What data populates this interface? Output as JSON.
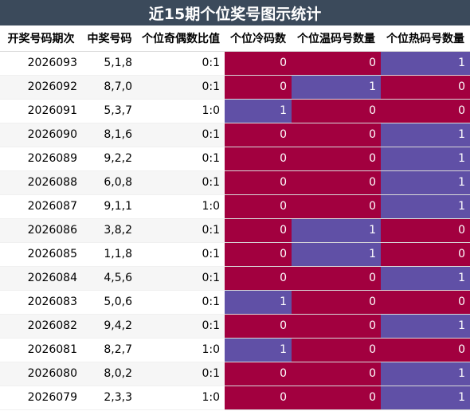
{
  "title": "近15期个位奖号图示统计",
  "headers": [
    "开奖号码期次",
    "中奖号码",
    "个位奇偶数比值",
    "个位冷码数",
    "个位温码号数量",
    "个位热码号数量"
  ],
  "colors": {
    "red": "#a2003f",
    "blue": "#6050a6",
    "title_bg": "#3b4a5b"
  },
  "rows": [
    {
      "issue": "2026093",
      "numbers": "5,1,8",
      "ratio": "0:1",
      "cold": "0",
      "warm": "0",
      "hot": "1"
    },
    {
      "issue": "2026092",
      "numbers": "8,7,0",
      "ratio": "0:1",
      "cold": "0",
      "warm": "1",
      "hot": "0"
    },
    {
      "issue": "2026091",
      "numbers": "5,3,7",
      "ratio": "1:0",
      "cold": "1",
      "warm": "0",
      "hot": "0"
    },
    {
      "issue": "2026090",
      "numbers": "8,1,6",
      "ratio": "0:1",
      "cold": "0",
      "warm": "0",
      "hot": "1"
    },
    {
      "issue": "2026089",
      "numbers": "9,2,2",
      "ratio": "0:1",
      "cold": "0",
      "warm": "0",
      "hot": "1"
    },
    {
      "issue": "2026088",
      "numbers": "6,0,8",
      "ratio": "0:1",
      "cold": "0",
      "warm": "0",
      "hot": "1"
    },
    {
      "issue": "2026087",
      "numbers": "9,1,1",
      "ratio": "1:0",
      "cold": "0",
      "warm": "0",
      "hot": "1"
    },
    {
      "issue": "2026086",
      "numbers": "3,8,2",
      "ratio": "0:1",
      "cold": "0",
      "warm": "1",
      "hot": "0"
    },
    {
      "issue": "2026085",
      "numbers": "1,1,8",
      "ratio": "0:1",
      "cold": "0",
      "warm": "1",
      "hot": "0"
    },
    {
      "issue": "2026084",
      "numbers": "4,5,6",
      "ratio": "0:1",
      "cold": "0",
      "warm": "0",
      "hot": "1"
    },
    {
      "issue": "2026083",
      "numbers": "5,0,6",
      "ratio": "0:1",
      "cold": "1",
      "warm": "0",
      "hot": "0"
    },
    {
      "issue": "2026082",
      "numbers": "9,4,2",
      "ratio": "0:1",
      "cold": "0",
      "warm": "0",
      "hot": "1"
    },
    {
      "issue": "2026081",
      "numbers": "8,2,7",
      "ratio": "1:0",
      "cold": "1",
      "warm": "0",
      "hot": "0"
    },
    {
      "issue": "2026080",
      "numbers": "8,0,2",
      "ratio": "0:1",
      "cold": "0",
      "warm": "0",
      "hot": "1"
    },
    {
      "issue": "2026079",
      "numbers": "2,3,3",
      "ratio": "1:0",
      "cold": "0",
      "warm": "0",
      "hot": "1"
    }
  ]
}
